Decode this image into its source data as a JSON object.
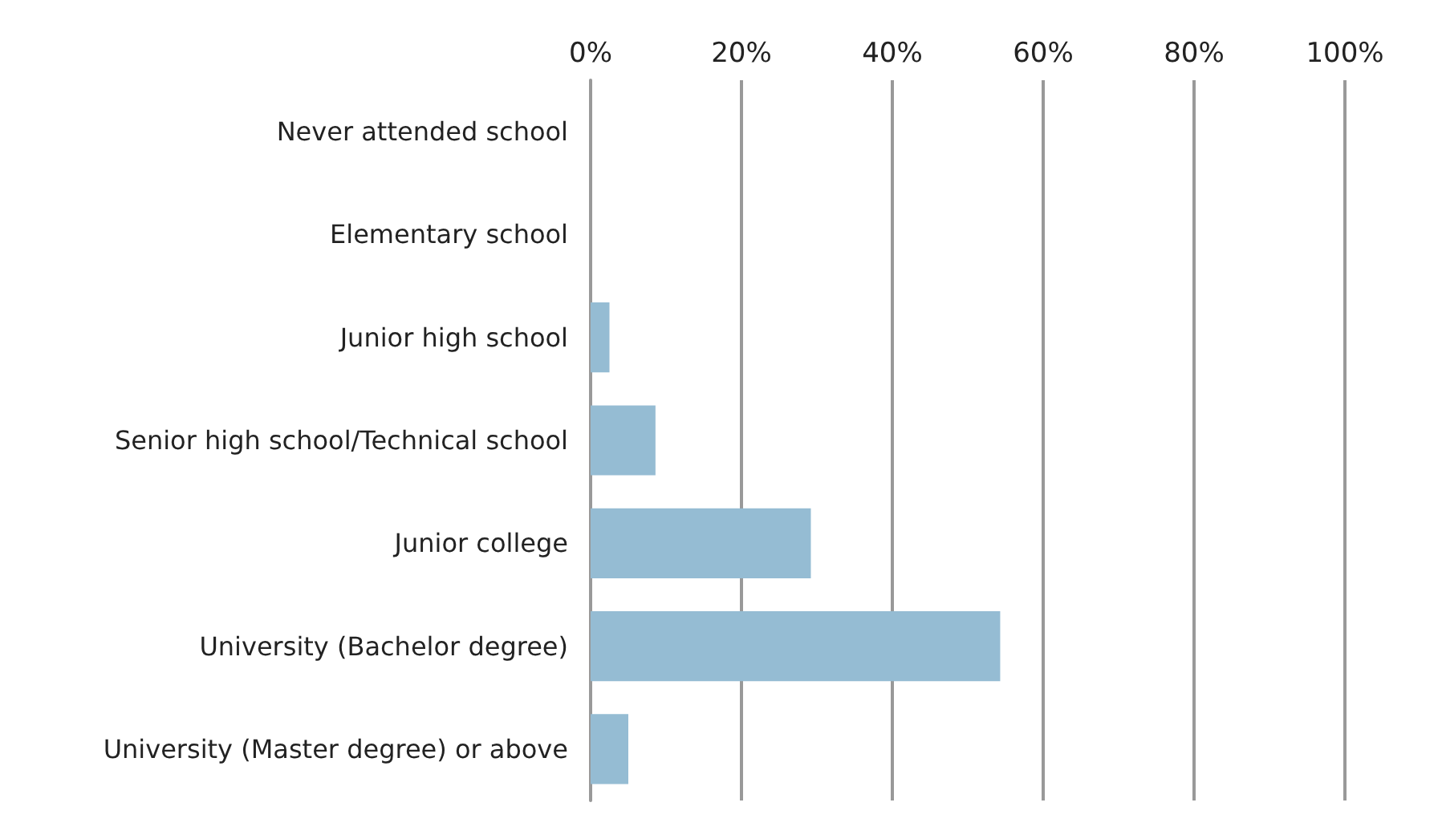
{
  "chart_data": {
    "type": "bar",
    "orientation": "horizontal",
    "categories": [
      "Never attended school",
      "Elementary school",
      "Junior high school",
      "Senior high school/Technical school",
      "Junior college",
      "University (Bachelor degree)",
      "University (Master degree) or above"
    ],
    "values": [
      0,
      0,
      2.5,
      8.6,
      29.2,
      54.3,
      5
    ],
    "color": "#95bcd3",
    "xlim": [
      0,
      100
    ],
    "xticks": [
      {
        "value": 0,
        "label": "0%"
      },
      {
        "value": 20,
        "label": "20%"
      },
      {
        "value": 40,
        "label": "40%"
      },
      {
        "value": 60,
        "label": "60%"
      },
      {
        "value": 80,
        "label": "80%"
      },
      {
        "value": 100,
        "label": "100%"
      }
    ],
    "grid": "x"
  }
}
